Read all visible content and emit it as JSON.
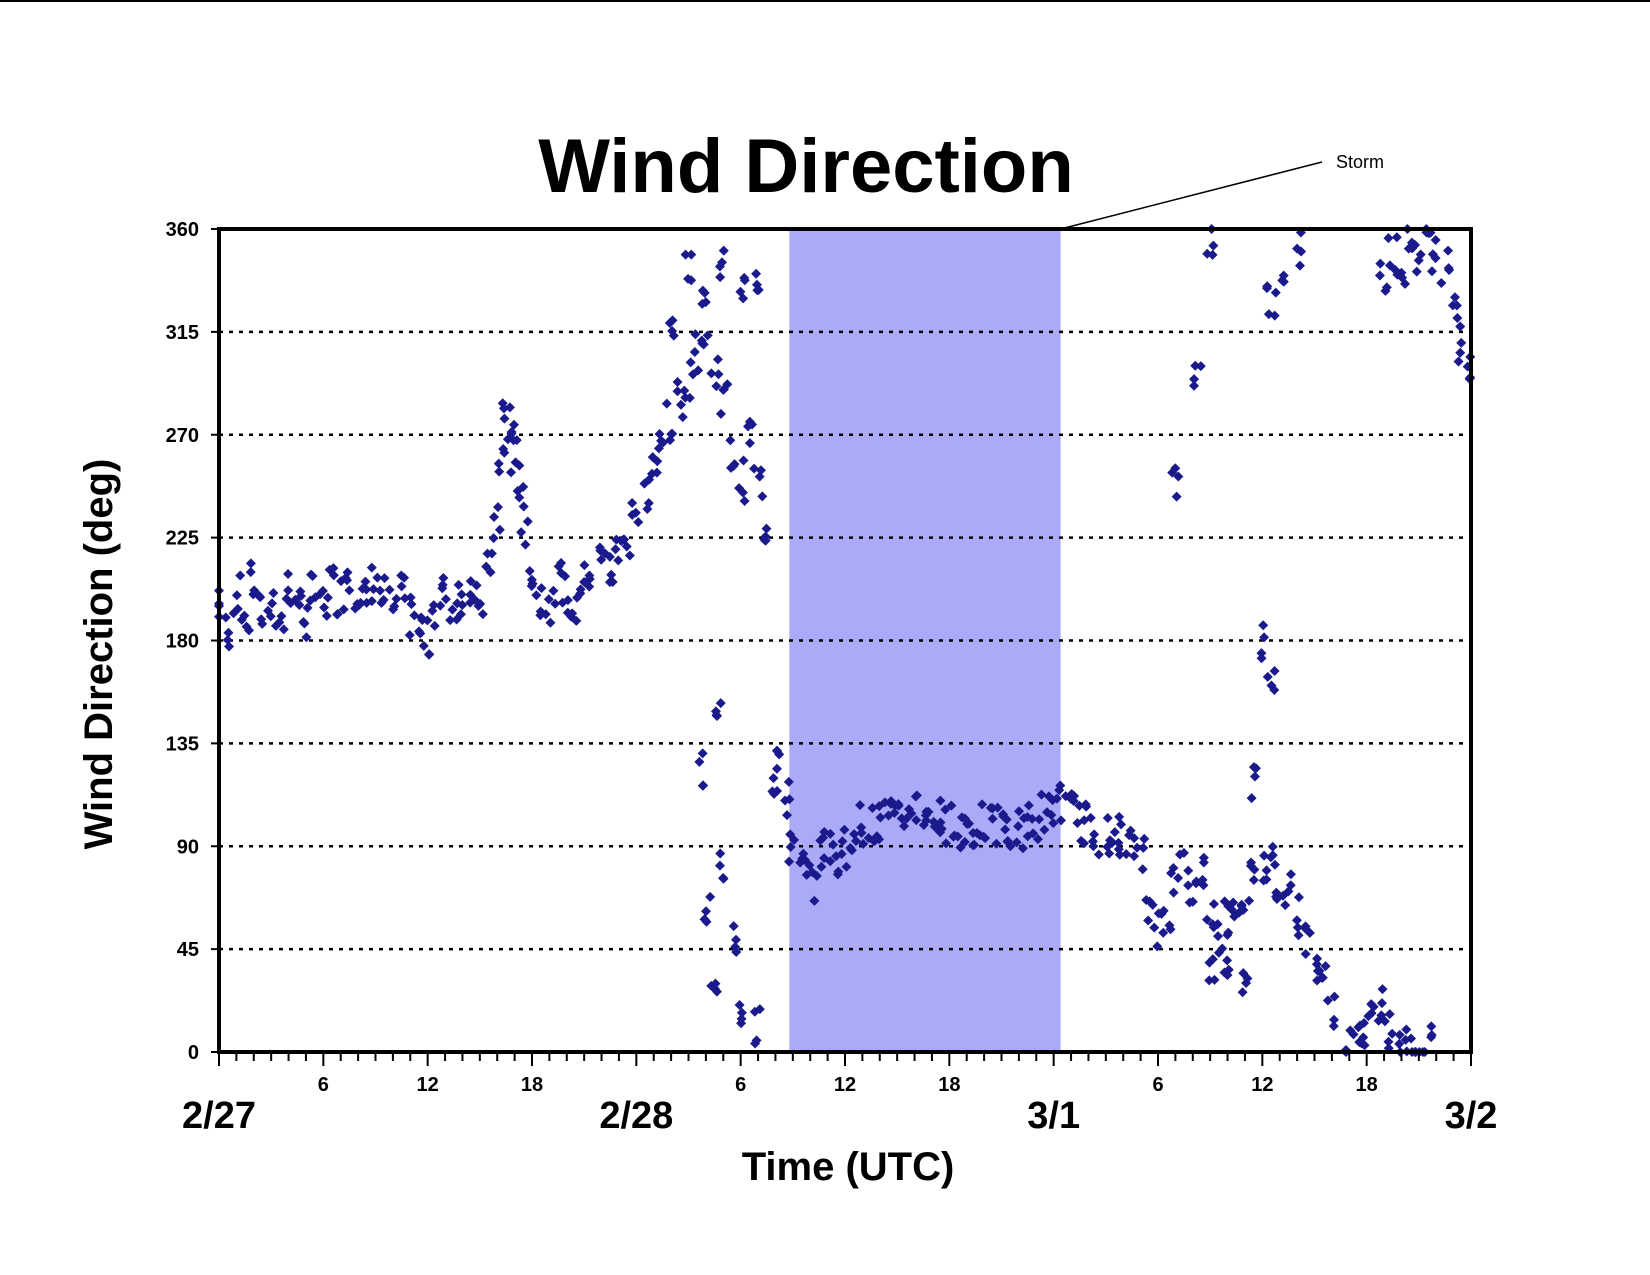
{
  "chart_data": {
    "type": "scatter",
    "title": "Wind Direction",
    "xlabel": "Time (UTC)",
    "ylabel": "Wind Direction (deg)",
    "ylim": [
      0,
      360
    ],
    "yticks": [
      0,
      45,
      90,
      135,
      180,
      225,
      270,
      315,
      360
    ],
    "xlim_hours": [
      0,
      72
    ],
    "x_hour_ticks": [
      {
        "hour": 6,
        "label": "6"
      },
      {
        "hour": 12,
        "label": "12"
      },
      {
        "hour": 18,
        "label": "18"
      },
      {
        "hour": 30,
        "label": "6"
      },
      {
        "hour": 36,
        "label": "12"
      },
      {
        "hour": 42,
        "label": "18"
      },
      {
        "hour": 54,
        "label": "6"
      },
      {
        "hour": 60,
        "label": "12"
      },
      {
        "hour": 66,
        "label": "18"
      }
    ],
    "x_day_labels": [
      {
        "hour": 0,
        "label": "2/27"
      },
      {
        "hour": 24,
        "label": "2/28"
      },
      {
        "hour": 48,
        "label": "3/1"
      },
      {
        "hour": 72,
        "label": "3/2"
      }
    ],
    "grid": "horizontal dotted",
    "marker": "diamond",
    "marker_color": "#1a1a8c",
    "highlight": {
      "label": "Storm",
      "x_start_hour": 32.8,
      "x_end_hour": 48.4,
      "color": "#aaaaf8"
    },
    "series": [
      {
        "points": [
          [
            0,
            195
          ],
          [
            0.5,
            185
          ],
          [
            1,
            200
          ],
          [
            1.5,
            190
          ],
          [
            2,
            205
          ],
          [
            2.5,
            192
          ],
          [
            3,
            198
          ],
          [
            3.5,
            188
          ],
          [
            4,
            203
          ],
          [
            4.5,
            193
          ],
          [
            5,
            190
          ],
          [
            5.5,
            200
          ],
          [
            6,
            195
          ],
          [
            6.5,
            205
          ],
          [
            7,
            200
          ],
          [
            7.5,
            210
          ],
          [
            8,
            203
          ],
          [
            8.5,
            198
          ],
          [
            9,
            205
          ],
          [
            9.5,
            200
          ],
          [
            10,
            195
          ],
          [
            10.5,
            200
          ],
          [
            11,
            190
          ],
          [
            11.5,
            185
          ],
          [
            12,
            180
          ],
          [
            12.5,
            195
          ],
          [
            13,
            200
          ],
          [
            13.5,
            195
          ],
          [
            14,
            200
          ],
          [
            14.5,
            205
          ],
          [
            15,
            200
          ],
          [
            15.5,
            210
          ],
          [
            16,
            230
          ],
          [
            16.2,
            260
          ],
          [
            16.5,
            280
          ],
          [
            16.8,
            270
          ],
          [
            17,
            260
          ],
          [
            17.3,
            250
          ],
          [
            17.6,
            230
          ],
          [
            18,
            210
          ],
          [
            18.5,
            200
          ],
          [
            19,
            195
          ],
          [
            19.5,
            205
          ],
          [
            20,
            200
          ],
          [
            20.5,
            195
          ],
          [
            21,
            205
          ],
          [
            21.5,
            210
          ],
          [
            22,
            215
          ],
          [
            22.5,
            210
          ],
          [
            23,
            220
          ],
          [
            23.5,
            225
          ],
          [
            24,
            235
          ],
          [
            24.5,
            245
          ],
          [
            25,
            255
          ],
          [
            25.5,
            265
          ],
          [
            26,
            275
          ],
          [
            26.5,
            285
          ],
          [
            27,
            295
          ],
          [
            27.5,
            305
          ],
          [
            28,
            310
          ],
          [
            28.5,
            300
          ],
          [
            29,
            285
          ],
          [
            29.5,
            260
          ],
          [
            30,
            250
          ],
          [
            30.5,
            270
          ],
          [
            31,
            250
          ],
          [
            31.5,
            230
          ],
          [
            32,
            120
          ],
          [
            32.3,
            130
          ],
          [
            32.6,
            110
          ],
          [
            33,
            90
          ],
          [
            33.5,
            80
          ],
          [
            34,
            75
          ],
          [
            34.5,
            85
          ],
          [
            35,
            90
          ],
          [
            35.5,
            85
          ],
          [
            36,
            90
          ],
          [
            36.5,
            95
          ],
          [
            37,
            100
          ],
          [
            37.5,
            100
          ],
          [
            38,
            100
          ],
          [
            38.5,
            105
          ],
          [
            39,
            100
          ],
          [
            39.5,
            105
          ],
          [
            40,
            108
          ],
          [
            40.5,
            105
          ],
          [
            41,
            100
          ],
          [
            41.5,
            102
          ],
          [
            42,
            100
          ],
          [
            42.5,
            98
          ],
          [
            43,
            100
          ],
          [
            43.5,
            95
          ],
          [
            44,
            100
          ],
          [
            44.5,
            98
          ],
          [
            45,
            100
          ],
          [
            45.5,
            95
          ],
          [
            46,
            98
          ],
          [
            46.5,
            100
          ],
          [
            47,
            100
          ],
          [
            47.5,
            105
          ],
          [
            48,
            105
          ],
          [
            48.5,
            110
          ],
          [
            49,
            105
          ],
          [
            49.5,
            100
          ],
          [
            50,
            100
          ],
          [
            50.5,
            95
          ],
          [
            51,
            95
          ],
          [
            51.5,
            90
          ],
          [
            52,
            95
          ],
          [
            52.5,
            90
          ],
          [
            53,
            85
          ],
          [
            53.5,
            65
          ],
          [
            54,
            55
          ],
          [
            54.5,
            60
          ],
          [
            55,
            75
          ],
          [
            55.5,
            80
          ],
          [
            56,
            70
          ],
          [
            56.5,
            80
          ],
          [
            57,
            60
          ],
          [
            57.5,
            50
          ],
          [
            58,
            60
          ],
          [
            58.5,
            65
          ],
          [
            59,
            70
          ],
          [
            59.5,
            75
          ],
          [
            60,
            80
          ],
          [
            60.5,
            85
          ],
          [
            61,
            75
          ],
          [
            61.5,
            70
          ],
          [
            62,
            60
          ],
          [
            62.5,
            50
          ],
          [
            63,
            40
          ],
          [
            63.5,
            30
          ],
          [
            64,
            20
          ],
          [
            65,
            5
          ],
          [
            65.5,
            3
          ],
          [
            66,
            10
          ],
          [
            66.5,
            15
          ],
          [
            67,
            20
          ],
          [
            67.5,
            10
          ],
          [
            68,
            5
          ],
          [
            68.5,
            3
          ],
          [
            69,
            2
          ],
          [
            69.5,
            3
          ],
          [
            67,
            340
          ],
          [
            67.5,
            350
          ],
          [
            68,
            345
          ],
          [
            68.5,
            355
          ],
          [
            69,
            350
          ],
          [
            69.5,
            355
          ],
          [
            70,
            350
          ],
          [
            70.5,
            345
          ],
          [
            71,
            330
          ],
          [
            71.5,
            310
          ],
          [
            72,
            300
          ],
          [
            26,
            320
          ],
          [
            27,
            340
          ],
          [
            28,
            330
          ],
          [
            29,
            345
          ],
          [
            30,
            335
          ],
          [
            31,
            340
          ],
          [
            28,
            60
          ],
          [
            28.5,
            30
          ],
          [
            29,
            80
          ],
          [
            29.5,
            50
          ],
          [
            30,
            20
          ],
          [
            31,
            10
          ],
          [
            27.8,
            125
          ],
          [
            28.8,
            145
          ],
          [
            55,
            250
          ],
          [
            57,
            40
          ],
          [
            58,
            40
          ],
          [
            59,
            35
          ],
          [
            60.5,
            330
          ],
          [
            61,
            340
          ],
          [
            62,
            350
          ],
          [
            60,
            180
          ],
          [
            60.5,
            160
          ],
          [
            59.5,
            120
          ],
          [
            57,
            355
          ],
          [
            56.3,
            295
          ]
        ]
      }
    ]
  }
}
